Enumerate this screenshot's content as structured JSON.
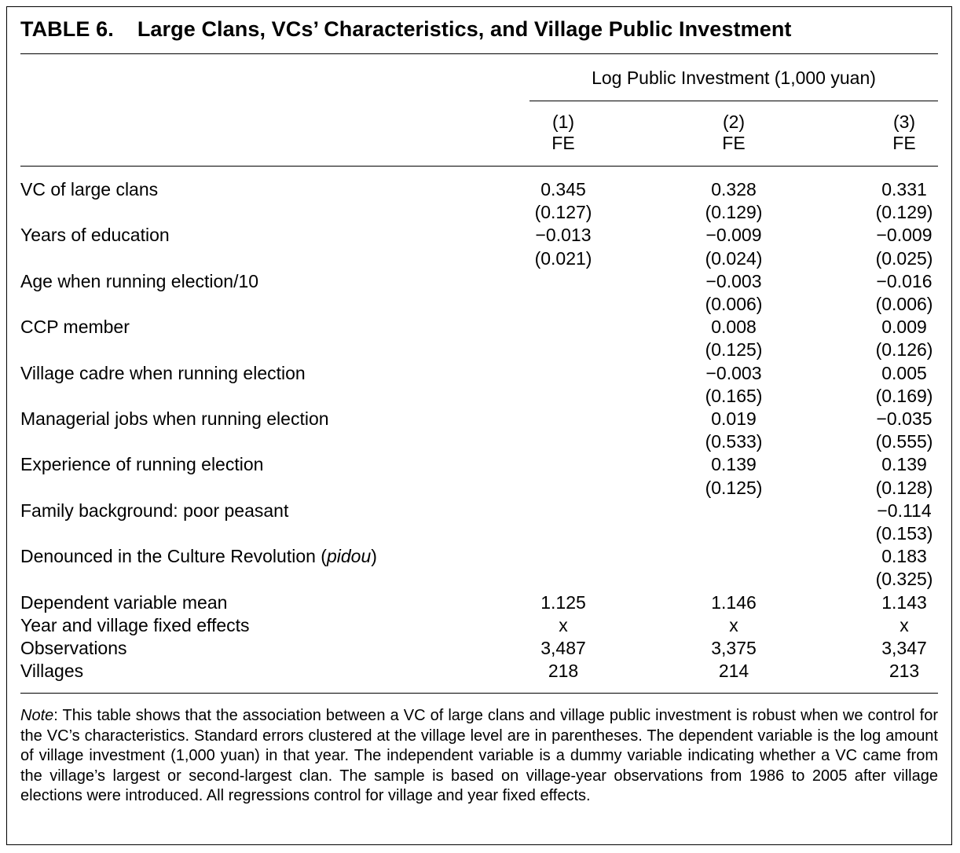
{
  "table": {
    "number": "TABLE 6.",
    "title": "Large Clans, VCs’ Characteristics, and Village Public Investment",
    "spanner": "Log Public Investment (1,000 yuan)",
    "columns": [
      {
        "num": "(1)",
        "method": "FE"
      },
      {
        "num": "(2)",
        "method": "FE"
      },
      {
        "num": "(3)",
        "method": "FE"
      }
    ],
    "rows": [
      {
        "label": "VC of large clans",
        "cells": [
          "0.345",
          "0.328",
          "0.331"
        ]
      },
      {
        "label": "",
        "cells": [
          "(0.127)",
          "(0.129)",
          "(0.129)"
        ]
      },
      {
        "label": "Years of education",
        "cells": [
          "−0.013",
          "−0.009",
          "−0.009"
        ]
      },
      {
        "label": "",
        "cells": [
          "(0.021)",
          "(0.024)",
          "(0.025)"
        ]
      },
      {
        "label": "Age when running election/10",
        "cells": [
          "",
          "−0.003",
          "−0.016"
        ]
      },
      {
        "label": "",
        "cells": [
          "",
          "(0.006)",
          "(0.006)"
        ]
      },
      {
        "label": "CCP member",
        "cells": [
          "",
          "0.008",
          "0.009"
        ]
      },
      {
        "label": "",
        "cells": [
          "",
          "(0.125)",
          "(0.126)"
        ]
      },
      {
        "label": "Village cadre when running election",
        "cells": [
          "",
          "−0.003",
          "0.005"
        ]
      },
      {
        "label": "",
        "cells": [
          "",
          "(0.165)",
          "(0.169)"
        ]
      },
      {
        "label": "Managerial jobs when running election",
        "cells": [
          "",
          "0.019",
          "−0.035"
        ]
      },
      {
        "label": "",
        "cells": [
          "",
          "(0.533)",
          "(0.555)"
        ]
      },
      {
        "label": "Experience of running election",
        "cells": [
          "",
          "0.139",
          "0.139"
        ]
      },
      {
        "label": "",
        "cells": [
          "",
          "(0.125)",
          "(0.128)"
        ]
      },
      {
        "label": "Family background: poor peasant",
        "cells": [
          "",
          "",
          "−0.114"
        ]
      },
      {
        "label": "",
        "cells": [
          "",
          "",
          "(0.153)"
        ]
      },
      {
        "label_prefix": "Denounced in the Culture Revolution (",
        "label_italic": "pidou",
        "label_suffix": ")",
        "cells": [
          "",
          "",
          "0.183"
        ]
      },
      {
        "label": "",
        "cells": [
          "",
          "",
          "(0.325)"
        ]
      },
      {
        "label": "Dependent variable mean",
        "cells": [
          "1.125",
          "1.146",
          "1.143"
        ]
      },
      {
        "label": "Year and village fixed effects",
        "cells": [
          "x",
          "x",
          "x"
        ]
      },
      {
        "label": "Observations",
        "cells": [
          "3,487",
          "3,375",
          "3,347"
        ]
      },
      {
        "label": "Villages",
        "cells": [
          "218",
          "214",
          "213"
        ]
      }
    ],
    "note_label": "Note",
    "note_text": ": This table shows that the association between a VC of large clans and village public investment is robust when we control for the VC’s characteristics. Standard errors clustered at the village level are in parentheses. The dependent variable is the log amount of village investment (1,000 yuan) in that year. The independent variable is a dummy variable indicating whether a VC came from the village’s largest or second-largest clan. The sample is based on village-year observations from 1986 to 2005 after village elections were introduced. All regressions control for village and year fixed effects."
  }
}
